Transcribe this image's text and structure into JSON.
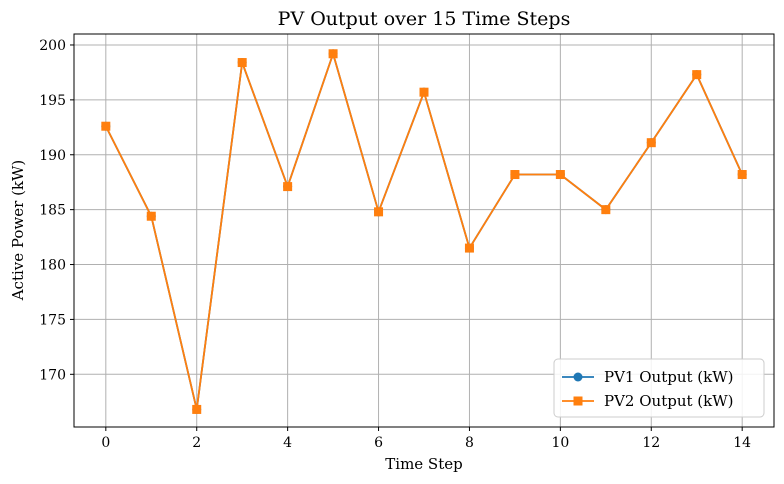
{
  "chart_data": {
    "type": "line",
    "title": "PV Output over 15 Time Steps",
    "xlabel": "Time Step",
    "ylabel": "Active Power (kW)",
    "x": [
      0,
      1,
      2,
      3,
      4,
      5,
      6,
      7,
      8,
      9,
      10,
      11,
      12,
      13,
      14
    ],
    "xlim": [
      -0.7,
      14.7
    ],
    "ylim": [
      165.2,
      201.0
    ],
    "xticks": [
      0,
      2,
      4,
      6,
      8,
      10,
      12,
      14
    ],
    "yticks": [
      170,
      175,
      180,
      185,
      190,
      195,
      200
    ],
    "grid": true,
    "legend_position": "bottom-right",
    "series": [
      {
        "name": "PV1 Output (kW)",
        "marker": "circle",
        "color": "#1f77b4",
        "values": [
          192.6,
          184.4,
          166.8,
          198.4,
          187.1,
          199.2,
          184.8,
          195.7,
          181.5,
          188.2,
          188.2,
          185.0,
          191.1,
          197.3,
          188.2
        ]
      },
      {
        "name": "PV2 Output (kW)",
        "marker": "square",
        "color": "#ff7f0e",
        "values": [
          192.6,
          184.4,
          166.8,
          198.4,
          187.1,
          199.2,
          184.8,
          195.7,
          181.5,
          188.2,
          188.2,
          185.0,
          191.1,
          197.3,
          188.2
        ]
      }
    ]
  }
}
